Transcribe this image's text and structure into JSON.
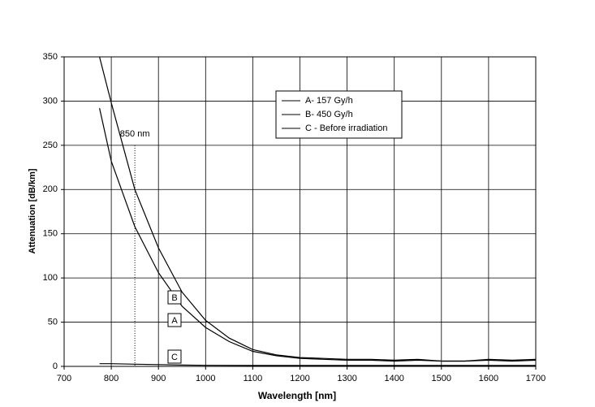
{
  "chart_data": {
    "type": "line",
    "xlabel": "Wavelength [nm]",
    "ylabel": "Attenuation [dB/km]",
    "xlim": [
      700,
      1700
    ],
    "xticks": [
      700,
      800,
      900,
      1000,
      1100,
      1200,
      1300,
      1400,
      1500,
      1600,
      1700
    ],
    "ylim": [
      0,
      350
    ],
    "yticks": [
      0,
      50,
      100,
      150,
      200,
      250,
      300,
      350
    ],
    "grid": true,
    "series": [
      {
        "name": "A- 157 Gy/h",
        "label": "A",
        "color": "#000000",
        "x": [
          775,
          800,
          850,
          900,
          950,
          1000,
          1050,
          1100,
          1150,
          1200,
          1250,
          1300,
          1350,
          1400,
          1450,
          1500,
          1550,
          1600,
          1650,
          1700
        ],
        "values": [
          292,
          232,
          158,
          106,
          68,
          44,
          28,
          17,
          12,
          9,
          8,
          7,
          7,
          6,
          7,
          6,
          6,
          7,
          6,
          7
        ]
      },
      {
        "name": "B- 450 Gy/h",
        "label": "B",
        "color": "#000000",
        "x": [
          775,
          800,
          850,
          900,
          950,
          1000,
          1050,
          1100,
          1150,
          1200,
          1250,
          1300,
          1350,
          1400,
          1450,
          1500,
          1550,
          1600,
          1650,
          1700
        ],
        "values": [
          350,
          298,
          200,
          134,
          84,
          52,
          32,
          19,
          13,
          10,
          9,
          8,
          8,
          7,
          8,
          6,
          6,
          8,
          7,
          8
        ]
      },
      {
        "name": "C - Before irradiation",
        "label": "C",
        "color": "#000000",
        "x": [
          775,
          800,
          850,
          900,
          950,
          1000,
          1100,
          1200,
          1300,
          1400,
          1500,
          1600,
          1700
        ],
        "values": [
          3,
          3,
          2.5,
          2,
          1.5,
          1.2,
          1,
          1,
          1,
          1,
          1,
          1,
          1
        ]
      }
    ],
    "marker": {
      "x": 850,
      "top": 250,
      "label": "850 nm"
    },
    "legend": "top-center"
  }
}
